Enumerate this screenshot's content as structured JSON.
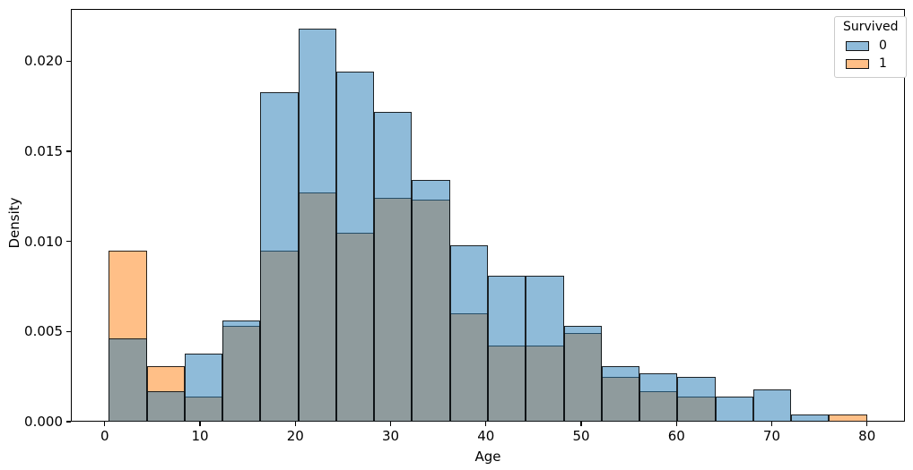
{
  "chart_data": {
    "type": "histogram",
    "stat": "density",
    "title": "",
    "xlabel": "Age",
    "ylabel": "Density",
    "xlim": [
      -3.56,
      83.98
    ],
    "ylim": [
      0,
      0.0229
    ],
    "grid": false,
    "legend_position": "upper right",
    "x_ticks": [
      {
        "value": 0,
        "label": "0"
      },
      {
        "value": 10,
        "label": "10"
      },
      {
        "value": 20,
        "label": "20"
      },
      {
        "value": 30,
        "label": "30"
      },
      {
        "value": 40,
        "label": "40"
      },
      {
        "value": 50,
        "label": "50"
      },
      {
        "value": 60,
        "label": "60"
      },
      {
        "value": 70,
        "label": "70"
      },
      {
        "value": 80,
        "label": "80"
      }
    ],
    "y_ticks": [
      {
        "value": 0.0,
        "label": "0.000"
      },
      {
        "value": 0.005,
        "label": "0.005"
      },
      {
        "value": 0.01,
        "label": "0.010"
      },
      {
        "value": 0.015,
        "label": "0.015"
      },
      {
        "value": 0.02,
        "label": "0.020"
      }
    ],
    "bin_edges": [
      0.42,
      4.4,
      8.38,
      12.36,
      16.34,
      20.31,
      24.29,
      28.27,
      32.25,
      36.23,
      40.21,
      44.19,
      48.17,
      52.15,
      56.13,
      60.1,
      64.08,
      68.06,
      72.04,
      76.02,
      80.0
    ],
    "series": [
      {
        "name": "0",
        "legend_label": "0",
        "fill": "rgba(31,119,180,0.5)",
        "legend_color": "#8fbbda",
        "values": [
          0.0046,
          0.0017,
          0.0038,
          0.0056,
          0.0183,
          0.0218,
          0.0194,
          0.0172,
          0.0134,
          0.0098,
          0.0081,
          0.0081,
          0.0053,
          0.0031,
          0.0027,
          0.0025,
          0.0014,
          0.0018,
          0.0004,
          0
        ]
      },
      {
        "name": "1",
        "legend_label": "1",
        "fill": "#ffbf87",
        "legend_color": "#ffbf87",
        "values": [
          0.0095,
          0.0031,
          0.0014,
          0.0053,
          0.0095,
          0.0127,
          0.0105,
          0.0124,
          0.0123,
          0.006,
          0.0042,
          0.0042,
          0.0049,
          0.0025,
          0.0017,
          0.0014,
          0,
          0,
          0,
          0.0004
        ]
      }
    ],
    "overlap_color": "#8f9b9d",
    "legend": {
      "title": "Survived"
    }
  }
}
